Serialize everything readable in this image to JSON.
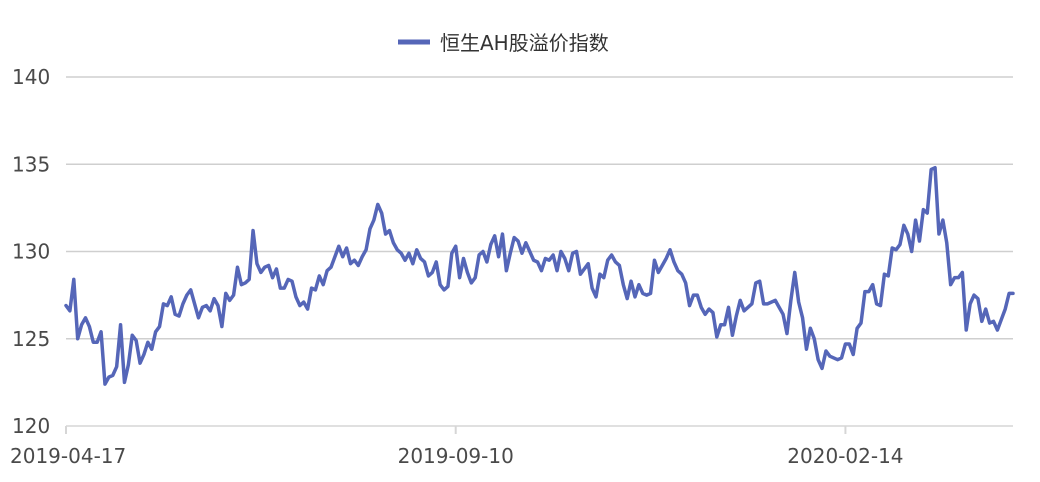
{
  "colors": {
    "series": "#5566b8",
    "grid": "#cfcfcf",
    "axis": "#d6d6d6",
    "tick_text": "#4a4a4a",
    "legend_text": "#333333",
    "background": "#ffffff"
  },
  "chart_data": {
    "type": "line",
    "legend": {
      "position": "top",
      "items": [
        "恒生AH股溢价指数"
      ]
    },
    "x_tick_labels": [
      "2019-04-17",
      "2019-09-10",
      "2020-02-14"
    ],
    "x_tick_indices": [
      0,
      100,
      200
    ],
    "x_range": [
      0,
      243
    ],
    "y_ticks": [
      120,
      125,
      130,
      135,
      140
    ],
    "y_tick_labels": [
      "120",
      "125",
      "130",
      "135",
      "140"
    ],
    "ylim": [
      120,
      140
    ],
    "grid": true,
    "series": [
      {
        "name": "恒生AH股溢价指数",
        "values": [
          126.9,
          126.6,
          128.4,
          125.0,
          125.8,
          126.2,
          125.7,
          124.8,
          124.8,
          125.4,
          122.4,
          122.8,
          122.9,
          123.4,
          125.8,
          122.5,
          123.5,
          125.2,
          124.9,
          123.6,
          124.1,
          124.8,
          124.4,
          125.4,
          125.7,
          127.0,
          126.9,
          127.4,
          126.4,
          126.3,
          127.0,
          127.5,
          127.8,
          127.0,
          126.2,
          126.8,
          126.9,
          126.6,
          127.3,
          126.9,
          125.7,
          127.6,
          127.2,
          127.5,
          129.1,
          128.1,
          128.2,
          128.4,
          131.2,
          129.3,
          128.8,
          129.1,
          129.2,
          128.5,
          129.0,
          127.9,
          127.9,
          128.4,
          128.3,
          127.4,
          126.9,
          127.1,
          126.7,
          127.9,
          127.8,
          128.6,
          128.1,
          128.9,
          129.1,
          129.7,
          130.3,
          129.7,
          130.2,
          129.3,
          129.5,
          129.2,
          129.7,
          130.1,
          131.3,
          131.8,
          132.7,
          132.2,
          131.0,
          131.2,
          130.5,
          130.1,
          129.9,
          129.5,
          129.9,
          129.3,
          130.1,
          129.6,
          129.4,
          128.6,
          128.8,
          129.4,
          128.1,
          127.8,
          128.0,
          129.9,
          130.3,
          128.5,
          129.6,
          128.8,
          128.2,
          128.5,
          129.8,
          130.0,
          129.4,
          130.4,
          130.9,
          129.7,
          131.0,
          128.9,
          129.9,
          130.8,
          130.6,
          129.9,
          130.5,
          130.0,
          129.5,
          129.4,
          128.9,
          129.6,
          129.5,
          129.8,
          128.9,
          130.0,
          129.6,
          128.9,
          129.9,
          130.0,
          128.7,
          129.0,
          129.3,
          127.9,
          127.4,
          128.7,
          128.5,
          129.5,
          129.8,
          129.4,
          129.2,
          128.1,
          127.3,
          128.3,
          127.4,
          128.1,
          127.6,
          127.5,
          127.6,
          129.5,
          128.8,
          129.2,
          129.6,
          130.1,
          129.4,
          128.9,
          128.7,
          128.2,
          126.9,
          127.5,
          127.5,
          126.8,
          126.4,
          126.7,
          126.5,
          125.1,
          125.8,
          125.8,
          126.8,
          125.2,
          126.3,
          127.2,
          126.6,
          126.8,
          127.0,
          128.2,
          128.3,
          127.0,
          127.0,
          127.1,
          127.2,
          126.8,
          126.4,
          125.3,
          127.2,
          128.8,
          127.1,
          126.2,
          124.4,
          125.6,
          125.0,
          123.8,
          123.3,
          124.3,
          124.0,
          123.9,
          123.8,
          123.9,
          124.7,
          124.7,
          124.1,
          125.6,
          125.9,
          127.7,
          127.7,
          128.1,
          127.0,
          126.9,
          128.7,
          128.6,
          130.2,
          130.1,
          130.4,
          131.5,
          131.0,
          130.0,
          131.8,
          130.6,
          132.4,
          132.2,
          134.7,
          134.8,
          131.0,
          131.8,
          130.5,
          128.1,
          128.5,
          128.5,
          128.8,
          125.5,
          127.0,
          127.5,
          127.3,
          126.0,
          126.7,
          125.9,
          126.0,
          125.5,
          126.1,
          126.7,
          127.6,
          127.6
        ]
      }
    ]
  }
}
